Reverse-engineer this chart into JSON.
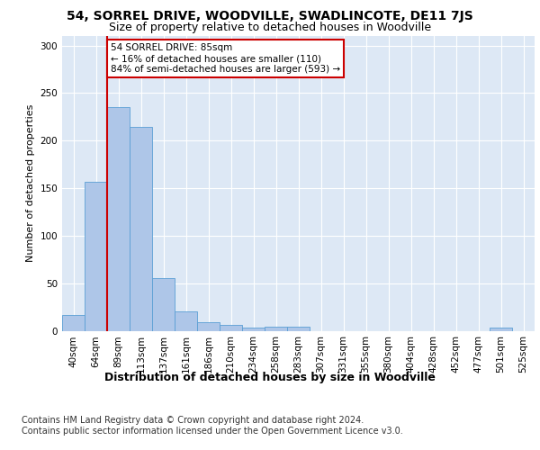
{
  "title1": "54, SORREL DRIVE, WOODVILLE, SWADLINCOTE, DE11 7JS",
  "title2": "Size of property relative to detached houses in Woodville",
  "xlabel": "Distribution of detached houses by size in Woodville",
  "ylabel": "Number of detached properties",
  "categories": [
    "40sqm",
    "64sqm",
    "89sqm",
    "113sqm",
    "137sqm",
    "161sqm",
    "186sqm",
    "210sqm",
    "234sqm",
    "258sqm",
    "283sqm",
    "307sqm",
    "331sqm",
    "355sqm",
    "380sqm",
    "404sqm",
    "428sqm",
    "452sqm",
    "477sqm",
    "501sqm",
    "525sqm"
  ],
  "values": [
    17,
    157,
    235,
    214,
    55,
    20,
    9,
    6,
    3,
    4,
    4,
    0,
    0,
    0,
    0,
    0,
    0,
    0,
    0,
    3,
    0
  ],
  "bar_color": "#aec6e8",
  "bar_edge_color": "#5a9fd4",
  "vline_x": 1.5,
  "vline_color": "#cc0000",
  "annotation_text": "54 SORREL DRIVE: 85sqm\n← 16% of detached houses are smaller (110)\n84% of semi-detached houses are larger (593) →",
  "annotation_box_color": "#ffffff",
  "annotation_box_edge": "#cc0000",
  "ylim": [
    0,
    310
  ],
  "yticks": [
    0,
    50,
    100,
    150,
    200,
    250,
    300
  ],
  "background_color": "#dde8f5",
  "footer_text": "Contains HM Land Registry data © Crown copyright and database right 2024.\nContains public sector information licensed under the Open Government Licence v3.0.",
  "title1_fontsize": 10,
  "title2_fontsize": 9,
  "xlabel_fontsize": 9,
  "ylabel_fontsize": 8,
  "footer_fontsize": 7,
  "tick_fontsize": 7.5,
  "annotation_fontsize": 7.5
}
